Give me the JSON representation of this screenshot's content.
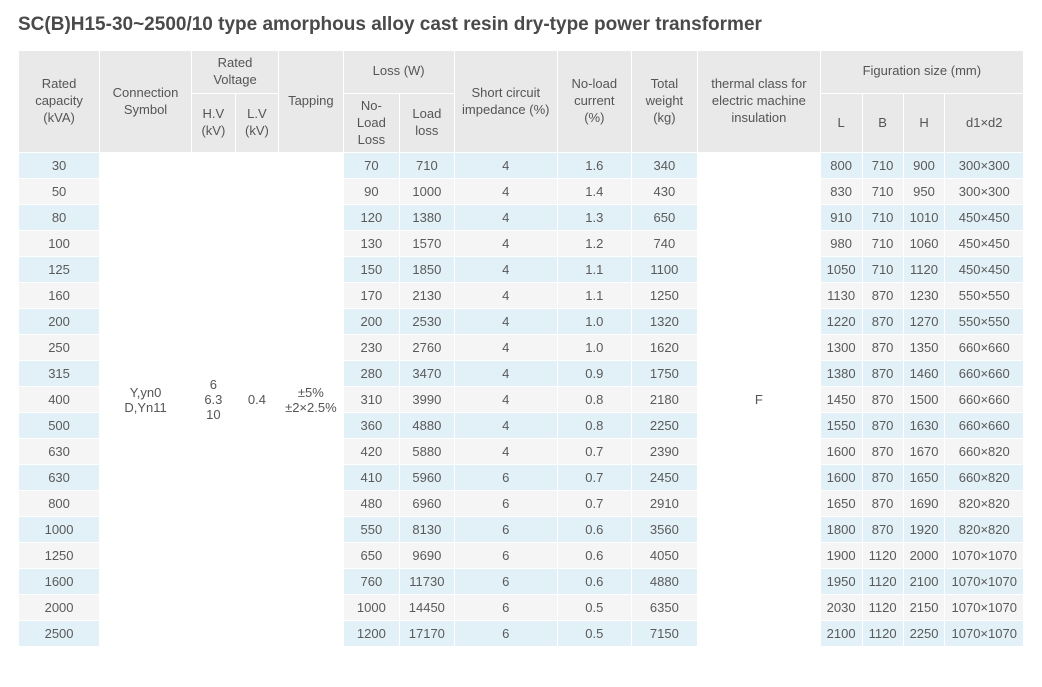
{
  "title": "SC(B)H15-30~2500/10 type amorphous alloy cast resin dry-type power transformer",
  "colors": {
    "band_odd": "#e2f0f7",
    "band_even": "#f5f5f5",
    "header_bg": "#e9e9e9",
    "border": "#ffffff",
    "text": "#5a5a5a",
    "title_text": "#4a4a4a",
    "page_bg": "#ffffff"
  },
  "columns": {
    "rated_capacity": "Rated capacity (kVA)",
    "connection_symbol": "Connection Symbol",
    "rated_voltage": "Rated Voltage",
    "hv": "H.V (kV)",
    "lv": "L.V (kV)",
    "tapping": "Tapping",
    "loss": "Loss (W)",
    "noload_loss": "No-Load Loss",
    "load_loss": "Load loss",
    "short_circuit": "Short circuit impedance (%)",
    "noload_current": "No-load current (%)",
    "total_weight": "Total weight (kg)",
    "thermal": "thermal class for electric machine insulation",
    "fig_size": "Figuration size (mm)",
    "L": "L",
    "B": "B",
    "H": "H",
    "d1d2": "d1×d2"
  },
  "shared": {
    "connection_symbol": "Y,yn0\nD,Yn11",
    "hv": "6\n6.3\n10",
    "lv": "0.4",
    "tapping": "±5%\n±2×2.5%",
    "thermal": "F"
  },
  "rows": [
    {
      "cap": "30",
      "nl": "70",
      "ll": "710",
      "sc": "4",
      "nlc": "1.6",
      "tw": "340",
      "L": "800",
      "B": "710",
      "H": "900",
      "d": "300×300"
    },
    {
      "cap": "50",
      "nl": "90",
      "ll": "1000",
      "sc": "4",
      "nlc": "1.4",
      "tw": "430",
      "L": "830",
      "B": "710",
      "H": "950",
      "d": "300×300"
    },
    {
      "cap": "80",
      "nl": "120",
      "ll": "1380",
      "sc": "4",
      "nlc": "1.3",
      "tw": "650",
      "L": "910",
      "B": "710",
      "H": "1010",
      "d": "450×450"
    },
    {
      "cap": "100",
      "nl": "130",
      "ll": "1570",
      "sc": "4",
      "nlc": "1.2",
      "tw": "740",
      "L": "980",
      "B": "710",
      "H": "1060",
      "d": "450×450"
    },
    {
      "cap": "125",
      "nl": "150",
      "ll": "1850",
      "sc": "4",
      "nlc": "1.1",
      "tw": "1100",
      "L": "1050",
      "B": "710",
      "H": "1120",
      "d": "450×450"
    },
    {
      "cap": "160",
      "nl": "170",
      "ll": "2130",
      "sc": "4",
      "nlc": "1.1",
      "tw": "1250",
      "L": "1130",
      "B": "870",
      "H": "1230",
      "d": "550×550"
    },
    {
      "cap": "200",
      "nl": "200",
      "ll": "2530",
      "sc": "4",
      "nlc": "1.0",
      "tw": "1320",
      "L": "1220",
      "B": "870",
      "H": "1270",
      "d": "550×550"
    },
    {
      "cap": "250",
      "nl": "230",
      "ll": "2760",
      "sc": "4",
      "nlc": "1.0",
      "tw": "1620",
      "L": "1300",
      "B": "870",
      "H": "1350",
      "d": "660×660"
    },
    {
      "cap": "315",
      "nl": "280",
      "ll": "3470",
      "sc": "4",
      "nlc": "0.9",
      "tw": "1750",
      "L": "1380",
      "B": "870",
      "H": "1460",
      "d": "660×660"
    },
    {
      "cap": "400",
      "nl": "310",
      "ll": "3990",
      "sc": "4",
      "nlc": "0.8",
      "tw": "2180",
      "L": "1450",
      "B": "870",
      "H": "1500",
      "d": "660×660"
    },
    {
      "cap": "500",
      "nl": "360",
      "ll": "4880",
      "sc": "4",
      "nlc": "0.8",
      "tw": "2250",
      "L": "1550",
      "B": "870",
      "H": "1630",
      "d": "660×660"
    },
    {
      "cap": "630",
      "nl": "420",
      "ll": "5880",
      "sc": "4",
      "nlc": "0.7",
      "tw": "2390",
      "L": "1600",
      "B": "870",
      "H": "1670",
      "d": "660×820"
    },
    {
      "cap": "630",
      "nl": "410",
      "ll": "5960",
      "sc": "6",
      "nlc": "0.7",
      "tw": "2450",
      "L": "1600",
      "B": "870",
      "H": "1650",
      "d": "660×820"
    },
    {
      "cap": "800",
      "nl": "480",
      "ll": "6960",
      "sc": "6",
      "nlc": "0.7",
      "tw": "2910",
      "L": "1650",
      "B": "870",
      "H": "1690",
      "d": "820×820"
    },
    {
      "cap": "1000",
      "nl": "550",
      "ll": "8130",
      "sc": "6",
      "nlc": "0.6",
      "tw": "3560",
      "L": "1800",
      "B": "870",
      "H": "1920",
      "d": "820×820"
    },
    {
      "cap": "1250",
      "nl": "650",
      "ll": "9690",
      "sc": "6",
      "nlc": "0.6",
      "tw": "4050",
      "L": "1900",
      "B": "1120",
      "H": "2000",
      "d": "1070×1070"
    },
    {
      "cap": "1600",
      "nl": "760",
      "ll": "11730",
      "sc": "6",
      "nlc": "0.6",
      "tw": "4880",
      "L": "1950",
      "B": "1120",
      "H": "2100",
      "d": "1070×1070"
    },
    {
      "cap": "2000",
      "nl": "1000",
      "ll": "14450",
      "sc": "6",
      "nlc": "0.5",
      "tw": "6350",
      "L": "2030",
      "B": "1120",
      "H": "2150",
      "d": "1070×1070"
    },
    {
      "cap": "2500",
      "nl": "1200",
      "ll": "17170",
      "sc": "6",
      "nlc": "0.5",
      "tw": "7150",
      "L": "2100",
      "B": "1120",
      "H": "2250",
      "d": "1070×1070"
    }
  ]
}
